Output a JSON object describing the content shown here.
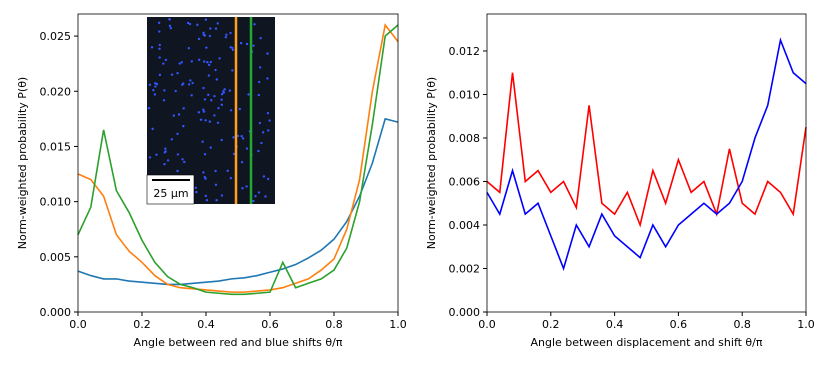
{
  "chart_data": [
    {
      "type": "line",
      "xlabel": "Angle between red and blue shifts θ/π",
      "ylabel": "Norm-weighted probability P(θ)",
      "annotations": [
        "25 μm"
      ],
      "xlim": [
        0,
        1
      ],
      "ylim": [
        0,
        0.027
      ],
      "xticks": [
        {
          "value": 0,
          "label": "0.0"
        },
        0.2,
        0.4,
        0.6,
        0.8,
        {
          "value": 1,
          "label": "1.0"
        }
      ],
      "yticks": [
        {
          "value": 0,
          "label": "0.000"
        },
        {
          "value": 0.005,
          "label": "0.005"
        },
        {
          "value": 0.01,
          "label": "0.010"
        },
        {
          "value": 0.015,
          "label": "0.015"
        },
        {
          "value": 0.02,
          "label": "0.020"
        },
        {
          "value": 0.025,
          "label": "0.025"
        }
      ],
      "x": [
        0,
        0.04,
        0.08,
        0.12,
        0.16,
        0.2,
        0.24,
        0.28,
        0.32,
        0.36,
        0.4,
        0.44,
        0.48,
        0.52,
        0.56,
        0.6,
        0.64,
        0.68,
        0.72,
        0.76,
        0.8,
        0.84,
        0.88,
        0.92,
        0.96,
        1
      ],
      "series": [
        {
          "color": "#1f77b4",
          "values": [
            0.0037,
            0.0033,
            0.003,
            0.003,
            0.0028,
            0.0027,
            0.0026,
            0.0025,
            0.0025,
            0.0026,
            0.0027,
            0.0028,
            0.003,
            0.0031,
            0.0033,
            0.0036,
            0.0039,
            0.0043,
            0.0049,
            0.0056,
            0.0066,
            0.0082,
            0.0105,
            0.0135,
            0.0175,
            0.0172
          ]
        },
        {
          "color": "#ff7f0e",
          "values": [
            0.0125,
            0.012,
            0.0105,
            0.007,
            0.0055,
            0.0045,
            0.0033,
            0.0025,
            0.0022,
            0.0021,
            0.002,
            0.0019,
            0.0018,
            0.0018,
            0.0019,
            0.002,
            0.0022,
            0.0026,
            0.003,
            0.0038,
            0.0048,
            0.0075,
            0.012,
            0.02,
            0.026,
            0.0245
          ]
        },
        {
          "color": "#2ca02c",
          "values": [
            0.007,
            0.0095,
            0.0165,
            0.011,
            0.009,
            0.0065,
            0.0045,
            0.0032,
            0.0025,
            0.0022,
            0.0018,
            0.0017,
            0.0016,
            0.0016,
            0.0017,
            0.0018,
            0.0045,
            0.0022,
            0.0026,
            0.003,
            0.0038,
            0.0058,
            0.01,
            0.017,
            0.025,
            0.026
          ]
        }
      ]
    },
    {
      "type": "line",
      "xlabel": "Angle between displacement and shift θ/π",
      "ylabel": "Norm-weighted probability P(θ)",
      "xlim": [
        0,
        1
      ],
      "ylim": [
        0,
        0.0137
      ],
      "xticks": [
        {
          "value": 0,
          "label": "0.0"
        },
        0.2,
        0.4,
        0.6,
        0.8,
        {
          "value": 1,
          "label": "1.0"
        }
      ],
      "yticks": [
        {
          "value": 0,
          "label": "0.000"
        },
        0.002,
        0.004,
        0.006,
        0.008,
        {
          "value": 0.01,
          "label": "0.010"
        },
        0.012
      ],
      "x": [
        0,
        0.04,
        0.08,
        0.12,
        0.16,
        0.2,
        0.24,
        0.28,
        0.32,
        0.36,
        0.4,
        0.44,
        0.48,
        0.52,
        0.56,
        0.6,
        0.64,
        0.68,
        0.72,
        0.76,
        0.8,
        0.84,
        0.88,
        0.92,
        0.96,
        1
      ],
      "series": [
        {
          "color": "#ff0000",
          "values": [
            0.006,
            0.0055,
            0.011,
            0.006,
            0.0065,
            0.0055,
            0.006,
            0.0048,
            0.0095,
            0.005,
            0.0045,
            0.0055,
            0.004,
            0.0065,
            0.005,
            0.007,
            0.0055,
            0.006,
            0.0045,
            0.0075,
            0.005,
            0.0045,
            0.006,
            0.0055,
            0.0045,
            0.0085
          ]
        },
        {
          "color": "#0000ff",
          "values": [
            0.0055,
            0.0045,
            0.0065,
            0.0045,
            0.005,
            0.0035,
            0.002,
            0.004,
            0.003,
            0.0045,
            0.0035,
            0.003,
            0.0025,
            0.004,
            0.003,
            0.004,
            0.0045,
            0.005,
            0.0045,
            0.005,
            0.006,
            0.008,
            0.0095,
            0.0125,
            0.011,
            0.0105
          ]
        }
      ]
    }
  ]
}
